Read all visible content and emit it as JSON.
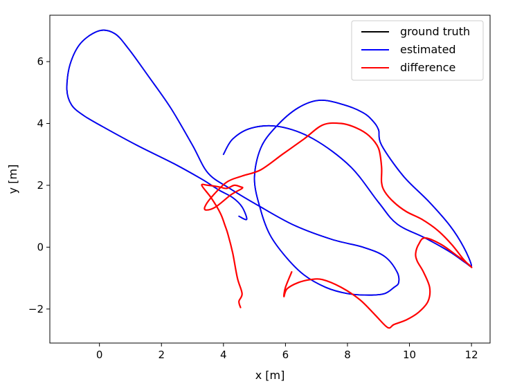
{
  "chart_data": {
    "type": "line",
    "title": "",
    "xlabel": "x [m]",
    "ylabel": "y [m]",
    "xlim": [
      -1.6,
      12.6
    ],
    "ylim": [
      -3.1,
      7.5
    ],
    "grid": false,
    "legend_position": "top-right",
    "x_ticks": [
      0,
      2,
      4,
      6,
      8,
      10,
      12
    ],
    "x_tick_labels": [
      "0",
      "2",
      "4",
      "6",
      "8",
      "10",
      "12"
    ],
    "y_ticks": [
      -2,
      0,
      2,
      4,
      6
    ],
    "y_tick_labels": [
      "−2",
      "0",
      "2",
      "4",
      "6"
    ],
    "series": [
      {
        "name": "ground truth",
        "color": "#000000",
        "x": [
          4.5,
          4.75,
          4.6,
          4.3,
          3.85,
          3.3,
          2.4,
          1.2,
          0.1,
          -0.5,
          -0.9,
          -1.05,
          -0.95,
          -0.6,
          0.0,
          0.5,
          0.95,
          1.6,
          2.3,
          3.0,
          3.5,
          4.2,
          5.2,
          6.3,
          7.5,
          8.5,
          9.2,
          9.6,
          9.65,
          9.5,
          9.2,
          8.7,
          8.0,
          7.3,
          6.6,
          6.0,
          5.5,
          5.2,
          5.0,
          5.2,
          5.7,
          6.4,
          7.1,
          7.9,
          8.5,
          8.8,
          9.0,
          9.1,
          9.8,
          10.6,
          11.3,
          11.75,
          12.0,
          11.8,
          11.3,
          10.5,
          9.6,
          9.0,
          8.1,
          6.9,
          5.8,
          4.9,
          4.3,
          4.0
        ],
        "y": [
          1.0,
          0.9,
          1.3,
          1.6,
          1.85,
          2.2,
          2.7,
          3.3,
          3.9,
          4.25,
          4.6,
          5.1,
          5.9,
          6.6,
          7.0,
          6.9,
          6.4,
          5.5,
          4.5,
          3.3,
          2.4,
          1.9,
          1.3,
          0.7,
          0.25,
          0.0,
          -0.3,
          -0.8,
          -1.15,
          -1.3,
          -1.5,
          -1.55,
          -1.5,
          -1.3,
          -0.9,
          -0.3,
          0.4,
          1.2,
          2.2,
          3.2,
          3.9,
          4.5,
          4.75,
          4.6,
          4.35,
          4.1,
          3.8,
          3.3,
          2.3,
          1.5,
          0.7,
          0.0,
          -0.6,
          -0.5,
          -0.15,
          0.3,
          0.75,
          1.45,
          2.6,
          3.5,
          3.9,
          3.85,
          3.5,
          3.0
        ]
      },
      {
        "name": "estimated",
        "color": "#0000ff",
        "x": [
          4.5,
          4.75,
          4.6,
          4.3,
          3.85,
          3.3,
          2.4,
          1.2,
          0.1,
          -0.5,
          -0.9,
          -1.05,
          -0.95,
          -0.6,
          0.0,
          0.5,
          0.95,
          1.6,
          2.3,
          3.0,
          3.5,
          4.2,
          5.2,
          6.3,
          7.5,
          8.5,
          9.2,
          9.6,
          9.65,
          9.5,
          9.2,
          8.7,
          8.0,
          7.3,
          6.6,
          6.0,
          5.5,
          5.2,
          5.0,
          5.2,
          5.7,
          6.4,
          7.1,
          7.9,
          8.5,
          8.8,
          9.0,
          9.1,
          9.8,
          10.6,
          11.3,
          11.75,
          12.0,
          11.8,
          11.3,
          10.5,
          9.6,
          9.0,
          8.1,
          6.9,
          5.8,
          4.9,
          4.3,
          4.0
        ],
        "y": [
          1.0,
          0.9,
          1.3,
          1.6,
          1.85,
          2.2,
          2.7,
          3.3,
          3.9,
          4.25,
          4.6,
          5.1,
          5.9,
          6.6,
          7.0,
          6.9,
          6.4,
          5.5,
          4.5,
          3.3,
          2.4,
          1.9,
          1.3,
          0.7,
          0.25,
          0.0,
          -0.3,
          -0.8,
          -1.15,
          -1.3,
          -1.5,
          -1.55,
          -1.5,
          -1.3,
          -0.9,
          -0.3,
          0.4,
          1.2,
          2.2,
          3.2,
          3.9,
          4.5,
          4.75,
          4.6,
          4.35,
          4.1,
          3.8,
          3.3,
          2.3,
          1.5,
          0.7,
          0.0,
          -0.6,
          -0.5,
          -0.15,
          0.3,
          0.75,
          1.45,
          2.6,
          3.5,
          3.9,
          3.85,
          3.5,
          3.0
        ]
      },
      {
        "name": "difference",
        "color": "#ff0000",
        "x": [
          4.55,
          4.5,
          4.6,
          4.45,
          4.3,
          4.15,
          4.05,
          3.9,
          3.6,
          3.3,
          3.5,
          3.85,
          4.1,
          4.35,
          4.55,
          4.6,
          4.25,
          3.75,
          3.45,
          3.4,
          3.6,
          4.1,
          4.6,
          5.2,
          5.9,
          6.6,
          7.2,
          7.8,
          8.3,
          8.7,
          9.0,
          9.1,
          9.1,
          9.2,
          9.5,
          9.9,
          10.4,
          10.9,
          11.35,
          11.75,
          12.0,
          11.9,
          11.5,
          11.0,
          10.5,
          10.3,
          10.2,
          10.25,
          10.45,
          10.65,
          10.6,
          10.3,
          9.9,
          9.5,
          9.3,
          8.9,
          8.4,
          7.8,
          7.2,
          6.8,
          6.4,
          6.05,
          5.95,
          6.0,
          6.2
        ],
        "y": [
          -1.95,
          -1.75,
          -1.5,
          -1.0,
          -0.2,
          0.4,
          0.7,
          1.1,
          1.6,
          2.0,
          2.0,
          1.95,
          1.9,
          2.0,
          1.95,
          1.9,
          1.7,
          1.3,
          1.2,
          1.3,
          1.6,
          2.1,
          2.3,
          2.5,
          3.0,
          3.5,
          3.95,
          4.0,
          3.85,
          3.6,
          3.2,
          2.6,
          2.1,
          1.8,
          1.45,
          1.15,
          0.9,
          0.55,
          0.1,
          -0.4,
          -0.65,
          -0.55,
          -0.25,
          0.1,
          0.3,
          0.1,
          -0.2,
          -0.45,
          -0.8,
          -1.3,
          -1.75,
          -2.1,
          -2.35,
          -2.5,
          -2.6,
          -2.2,
          -1.7,
          -1.3,
          -1.05,
          -1.05,
          -1.15,
          -1.35,
          -1.6,
          -1.3,
          -0.8
        ]
      }
    ]
  }
}
